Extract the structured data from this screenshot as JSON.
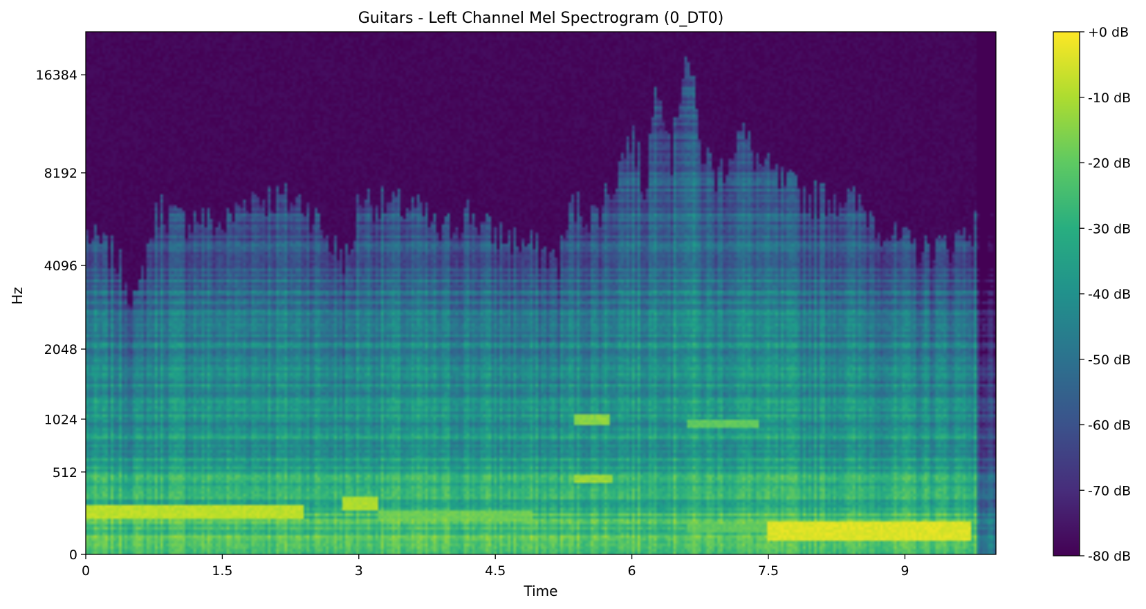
{
  "chart_data": {
    "type": "heatmap",
    "title": "Guitars - Left Channel Mel Spectrogram (0_DT0)",
    "xlabel": "Time",
    "ylabel": "Hz",
    "xlim": [
      0,
      10
    ],
    "x_ticks": [
      0,
      1.5,
      3,
      4.5,
      6,
      7.5,
      9
    ],
    "x_tick_labels": [
      "0",
      "1.5",
      "3",
      "4.5",
      "6",
      "7.5",
      "9"
    ],
    "y_scale": "mel",
    "y_ticks": [
      0,
      512,
      1024,
      2048,
      4096,
      8192,
      16384
    ],
    "y_tick_labels": [
      "0",
      "512",
      "1024",
      "2048",
      "4096",
      "8192",
      "16384"
    ],
    "colormap": "viridis",
    "colorbar": {
      "range": [
        -80,
        0
      ],
      "ticks": [
        0,
        -10,
        -20,
        -30,
        -40,
        -50,
        -60,
        -70,
        -80
      ],
      "tick_labels": [
        "+0 dB",
        "-10 dB",
        "-20 dB",
        "-30 dB",
        "-40 dB",
        "-50 dB",
        "-60 dB",
        "-70 dB",
        "-80 dB"
      ]
    },
    "colors": {
      "min": "#440154",
      "mid": "#21918c",
      "max": "#fde725"
    },
    "upper_envelope_hz": [
      [
        0.0,
        5200
      ],
      [
        0.3,
        4400
      ],
      [
        0.55,
        3000
      ],
      [
        0.8,
        6500
      ],
      [
        1.0,
        5800
      ],
      [
        1.2,
        6000
      ],
      [
        1.5,
        5500
      ],
      [
        1.8,
        7000
      ],
      [
        2.1,
        6800
      ],
      [
        2.4,
        6600
      ],
      [
        2.7,
        4800
      ],
      [
        2.9,
        4200
      ],
      [
        3.0,
        7000
      ],
      [
        3.3,
        6500
      ],
      [
        3.6,
        6400
      ],
      [
        3.9,
        5200
      ],
      [
        4.2,
        6200
      ],
      [
        4.4,
        5400
      ],
      [
        4.7,
        5000
      ],
      [
        5.0,
        4600
      ],
      [
        5.2,
        4200
      ],
      [
        5.35,
        6500
      ],
      [
        5.6,
        6000
      ],
      [
        5.8,
        7600
      ],
      [
        6.0,
        11000
      ],
      [
        6.15,
        7000
      ],
      [
        6.3,
        17000
      ],
      [
        6.45,
        9000
      ],
      [
        6.6,
        20000
      ],
      [
        6.75,
        10000
      ],
      [
        6.95,
        8000
      ],
      [
        7.2,
        11000
      ],
      [
        7.45,
        8500
      ],
      [
        7.7,
        7500
      ],
      [
        8.0,
        6800
      ],
      [
        8.3,
        7000
      ],
      [
        8.6,
        6200
      ],
      [
        8.9,
        5000
      ],
      [
        9.2,
        4600
      ],
      [
        9.5,
        4800
      ],
      [
        9.75,
        5600
      ],
      [
        10.0,
        5400
      ]
    ],
    "bright_regions": [
      {
        "t0": 0.0,
        "t1": 2.4,
        "hz0": 180,
        "hz1": 260,
        "db": -8
      },
      {
        "t0": 2.8,
        "t1": 3.2,
        "hz0": 230,
        "hz1": 330,
        "db": -10
      },
      {
        "t0": 3.2,
        "t1": 4.9,
        "hz0": 160,
        "hz1": 230,
        "db": -18
      },
      {
        "t0": 5.35,
        "t1": 5.75,
        "hz0": 960,
        "hz1": 1060,
        "db": -14
      },
      {
        "t0": 5.35,
        "t1": 5.8,
        "hz0": 420,
        "hz1": 490,
        "db": -12
      },
      {
        "t0": 6.6,
        "t1": 7.4,
        "hz0": 920,
        "hz1": 1000,
        "db": -20
      },
      {
        "t0": 6.6,
        "t1": 7.5,
        "hz0": 100,
        "hz1": 170,
        "db": -20
      },
      {
        "t0": 7.5,
        "t1": 9.75,
        "hz0": 60,
        "hz1": 170,
        "db": -4
      }
    ]
  }
}
